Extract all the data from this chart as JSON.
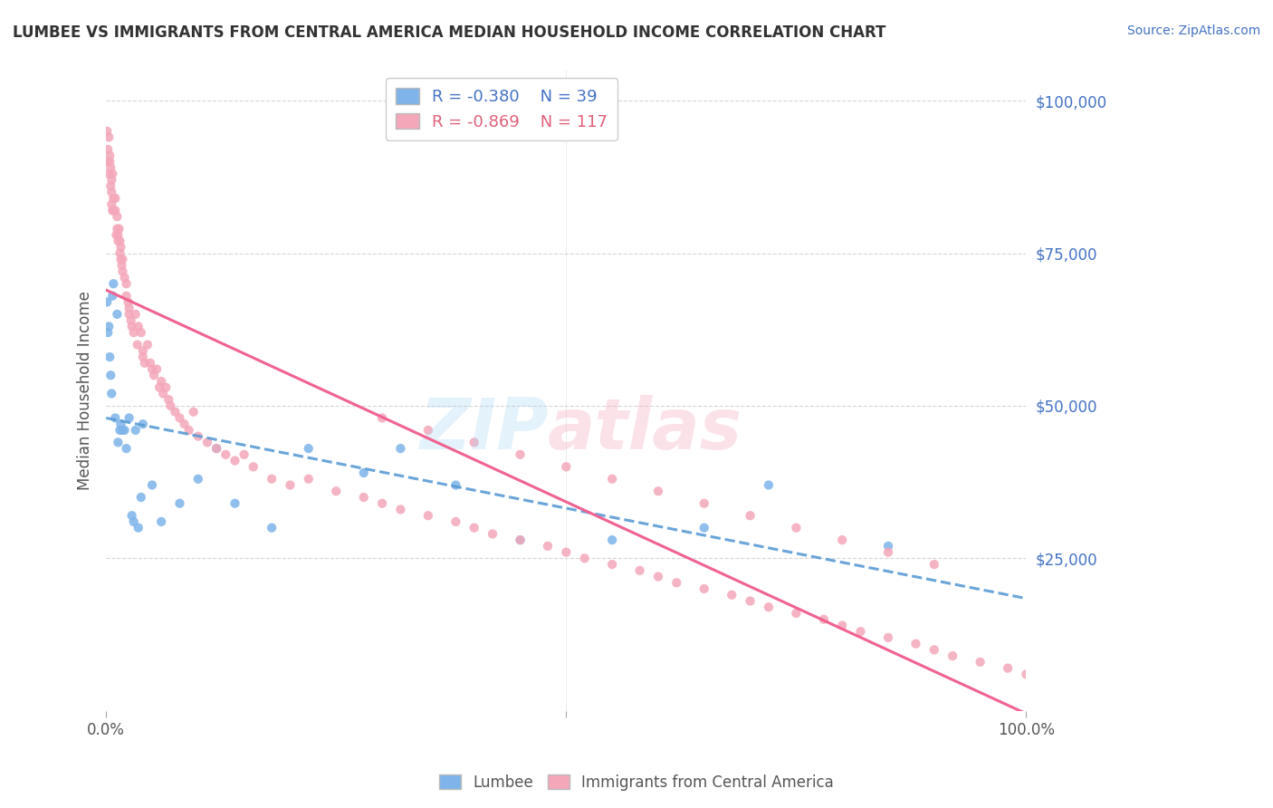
{
  "title": "LUMBEE VS IMMIGRANTS FROM CENTRAL AMERICA MEDIAN HOUSEHOLD INCOME CORRELATION CHART",
  "source": "Source: ZipAtlas.com",
  "ylabel": "Median Household Income",
  "xlim": [
    0.0,
    1.0
  ],
  "ylim": [
    0,
    105000
  ],
  "yticks": [
    0,
    25000,
    50000,
    75000,
    100000
  ],
  "ytick_labels": [
    "",
    "$25,000",
    "$50,000",
    "$75,000",
    "$100,000"
  ],
  "xtick_labels": [
    "0.0%",
    "100.0%"
  ],
  "background_color": "#ffffff",
  "grid_color": "#cccccc",
  "lumbee_color": "#7eb4ea",
  "immigrant_color": "#f4a7b9",
  "lumbee_line_color": "#5b9bd5",
  "immigrant_line_color": "#f06292",
  "legend_R_lumbee": "-0.380",
  "legend_N_lumbee": "39",
  "legend_R_immigrant": "-0.869",
  "legend_N_immigrant": "117",
  "lumbee_x": [
    0.001,
    0.002,
    0.003,
    0.004,
    0.005,
    0.006,
    0.007,
    0.008,
    0.01,
    0.012,
    0.013,
    0.015,
    0.016,
    0.018,
    0.02,
    0.022,
    0.025,
    0.028,
    0.03,
    0.032,
    0.035,
    0.038,
    0.04,
    0.05,
    0.06,
    0.08,
    0.1,
    0.12,
    0.14,
    0.18,
    0.22,
    0.28,
    0.32,
    0.38,
    0.45,
    0.55,
    0.65,
    0.72,
    0.85
  ],
  "lumbee_y": [
    67000,
    62000,
    63000,
    58000,
    55000,
    52000,
    68000,
    70000,
    48000,
    65000,
    44000,
    46000,
    47000,
    46000,
    46000,
    43000,
    48000,
    32000,
    31000,
    46000,
    30000,
    35000,
    47000,
    37000,
    31000,
    34000,
    38000,
    43000,
    34000,
    30000,
    43000,
    39000,
    43000,
    37000,
    28000,
    28000,
    30000,
    37000,
    27000
  ],
  "immigrant_x": [
    0.001,
    0.002,
    0.002,
    0.003,
    0.003,
    0.004,
    0.004,
    0.005,
    0.005,
    0.006,
    0.006,
    0.006,
    0.007,
    0.007,
    0.008,
    0.008,
    0.01,
    0.01,
    0.011,
    0.012,
    0.012,
    0.013,
    0.013,
    0.014,
    0.015,
    0.015,
    0.016,
    0.016,
    0.017,
    0.018,
    0.018,
    0.02,
    0.022,
    0.022,
    0.024,
    0.025,
    0.025,
    0.027,
    0.028,
    0.03,
    0.032,
    0.034,
    0.035,
    0.038,
    0.04,
    0.04,
    0.042,
    0.045,
    0.048,
    0.05,
    0.052,
    0.055,
    0.058,
    0.06,
    0.062,
    0.065,
    0.068,
    0.07,
    0.075,
    0.08,
    0.085,
    0.09,
    0.095,
    0.1,
    0.11,
    0.12,
    0.13,
    0.14,
    0.15,
    0.16,
    0.18,
    0.2,
    0.22,
    0.25,
    0.28,
    0.3,
    0.32,
    0.35,
    0.38,
    0.4,
    0.42,
    0.45,
    0.48,
    0.5,
    0.52,
    0.55,
    0.58,
    0.6,
    0.62,
    0.65,
    0.68,
    0.7,
    0.72,
    0.75,
    0.78,
    0.8,
    0.82,
    0.85,
    0.88,
    0.9,
    0.92,
    0.95,
    0.98,
    1.0,
    0.3,
    0.35,
    0.4,
    0.45,
    0.5,
    0.55,
    0.6,
    0.65,
    0.7,
    0.75,
    0.8,
    0.85,
    0.9
  ],
  "immigrant_y": [
    95000,
    92000,
    90000,
    94000,
    88000,
    90000,
    91000,
    89000,
    86000,
    85000,
    87000,
    83000,
    88000,
    82000,
    84000,
    82000,
    84000,
    82000,
    78000,
    79000,
    81000,
    78000,
    77000,
    79000,
    75000,
    77000,
    76000,
    74000,
    73000,
    72000,
    74000,
    71000,
    70000,
    68000,
    67000,
    66000,
    65000,
    64000,
    63000,
    62000,
    65000,
    60000,
    63000,
    62000,
    59000,
    58000,
    57000,
    60000,
    57000,
    56000,
    55000,
    56000,
    53000,
    54000,
    52000,
    53000,
    51000,
    50000,
    49000,
    48000,
    47000,
    46000,
    49000,
    45000,
    44000,
    43000,
    42000,
    41000,
    42000,
    40000,
    38000,
    37000,
    38000,
    36000,
    35000,
    34000,
    33000,
    32000,
    31000,
    30000,
    29000,
    28000,
    27000,
    26000,
    25000,
    24000,
    23000,
    22000,
    21000,
    20000,
    19000,
    18000,
    17000,
    16000,
    15000,
    14000,
    13000,
    12000,
    11000,
    10000,
    9000,
    8000,
    7000,
    6000,
    48000,
    46000,
    44000,
    42000,
    40000,
    38000,
    36000,
    34000,
    32000,
    30000,
    28000,
    26000,
    24000
  ]
}
